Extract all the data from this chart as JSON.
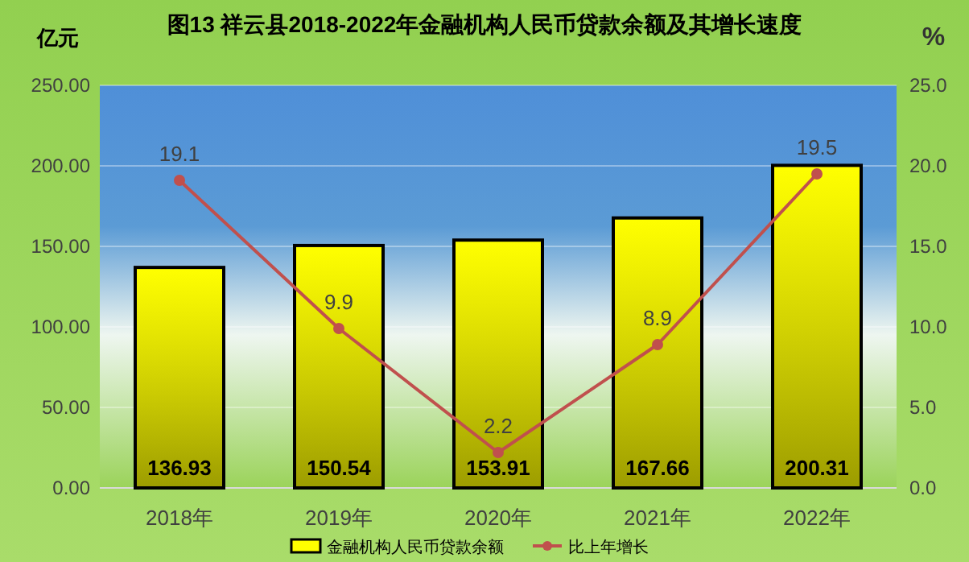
{
  "chart_data": {
    "type": "bar",
    "title": "图13  祥云县2018-2022年金融机构人民币贷款余额及其增长速度",
    "ylabel": "亿元",
    "y2label": "%",
    "categories": [
      "2018年",
      "2019年",
      "2020年",
      "2021年",
      "2022年"
    ],
    "series": [
      {
        "name": "金融机构人民币贷款余额",
        "color": "#ffff00",
        "values": [
          136.93,
          150.54,
          153.91,
          167.66,
          200.31
        ]
      },
      {
        "name": "比上年增长",
        "type": "line",
        "axis": "y2",
        "color": "#c0504d",
        "values": [
          19.1,
          9.9,
          2.2,
          8.9,
          19.5
        ]
      }
    ],
    "ylim": [
      0,
      250
    ],
    "yticks": [
      {
        "value": 0,
        "label": "0.00"
      },
      {
        "value": 50,
        "label": "50.00"
      },
      {
        "value": 100,
        "label": "100.00"
      },
      {
        "value": 150,
        "label": "150.00"
      },
      {
        "value": 200,
        "label": "200.00"
      },
      {
        "value": 250,
        "label": "250.00"
      }
    ],
    "y2lim": [
      0,
      25
    ],
    "y2ticks": [
      {
        "value": 0,
        "label": "0.0"
      },
      {
        "value": 5,
        "label": "5.0"
      },
      {
        "value": 10,
        "label": "10.0"
      },
      {
        "value": 15,
        "label": "15.0"
      },
      {
        "value": 20,
        "label": "20.0"
      },
      {
        "value": 25,
        "label": "25.0"
      }
    ],
    "grid": "y",
    "legend": "bottom",
    "marker": "circle",
    "data_labels": true
  }
}
